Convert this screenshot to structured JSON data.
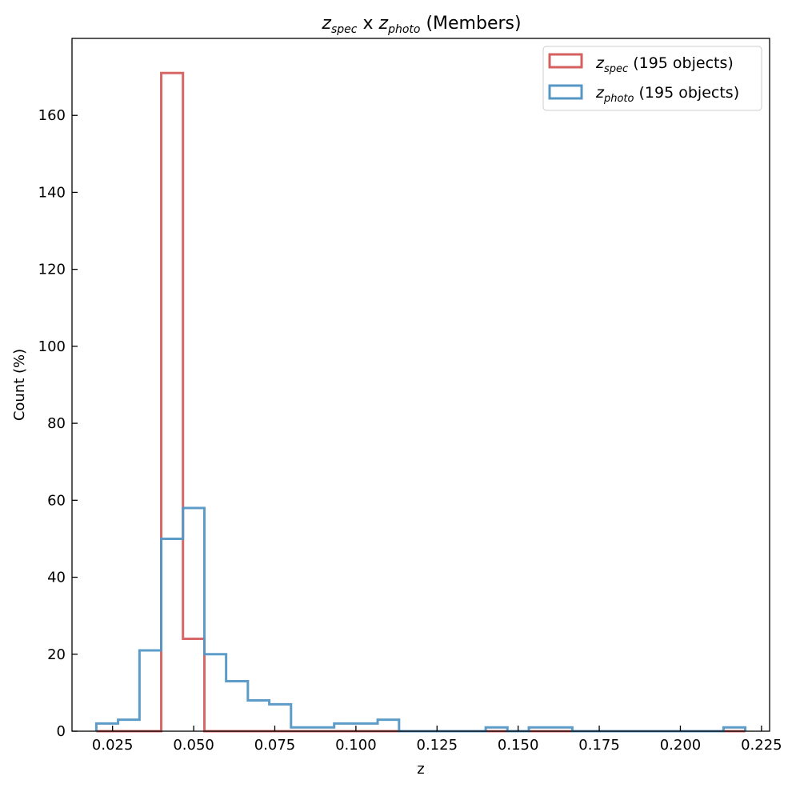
{
  "chart_data": {
    "type": "histogram-step",
    "title": {
      "a": "z",
      "a_sub": "spec",
      "mid": " x ",
      "b": "z",
      "b_sub": "photo",
      "tail": " (Members)"
    },
    "xlabel": "z",
    "ylabel": "Count (%)",
    "xlim": [
      0.0125,
      0.2275
    ],
    "ylim": [
      0,
      180
    ],
    "xticks": [
      0.025,
      0.05,
      0.075,
      0.1,
      0.125,
      0.15,
      0.175,
      0.2,
      0.225
    ],
    "xtick_labels": [
      "0.025",
      "0.050",
      "0.075",
      "0.100",
      "0.125",
      "0.150",
      "0.175",
      "0.200",
      "0.225"
    ],
    "yticks": [
      0,
      20,
      40,
      60,
      80,
      100,
      120,
      140,
      160
    ],
    "ytick_labels": [
      "0",
      "20",
      "40",
      "60",
      "80",
      "100",
      "120",
      "140",
      "160"
    ],
    "legend_position": "top-right",
    "series": [
      {
        "legend_main": "z",
        "legend_sub": "spec",
        "legend_tail": " (195 objects)",
        "color": "#d65f5f",
        "bin_edges": [
          0.02,
          0.0267,
          0.0333,
          0.04,
          0.0467,
          0.0533,
          0.06,
          0.0667,
          0.0733,
          0.08,
          0.0867,
          0.0933,
          0.1,
          0.1067,
          0.1133,
          0.12,
          0.1267,
          0.1333,
          0.14,
          0.1467,
          0.1533,
          0.16,
          0.1667,
          0.1733,
          0.18,
          0.1867,
          0.1933,
          0.2,
          0.2067,
          0.2133,
          0.22
        ],
        "counts": [
          0,
          0,
          0,
          171,
          24,
          0,
          0,
          0,
          0,
          0,
          0,
          0,
          0,
          0,
          0,
          0,
          0,
          0,
          0,
          0,
          0,
          0,
          0,
          0,
          0,
          0,
          0,
          0,
          0,
          0
        ]
      },
      {
        "legend_main": "z",
        "legend_sub": "photo",
        "legend_tail": " (195 objects)",
        "color": "#5497c5",
        "bin_edges": [
          0.02,
          0.0267,
          0.0333,
          0.04,
          0.0467,
          0.0533,
          0.06,
          0.0667,
          0.0733,
          0.08,
          0.0867,
          0.0933,
          0.1,
          0.1067,
          0.1133,
          0.12,
          0.1267,
          0.1333,
          0.14,
          0.1467,
          0.1533,
          0.16,
          0.1667,
          0.1733,
          0.18,
          0.1867,
          0.1933,
          0.2,
          0.2067,
          0.2133,
          0.22
        ],
        "counts": [
          2,
          3,
          21,
          50,
          58,
          20,
          13,
          8,
          7,
          1,
          1,
          2,
          2,
          3,
          0,
          0,
          0,
          0,
          1,
          0,
          1,
          1,
          0,
          0,
          0,
          0,
          0,
          0,
          0,
          1
        ]
      }
    ]
  }
}
